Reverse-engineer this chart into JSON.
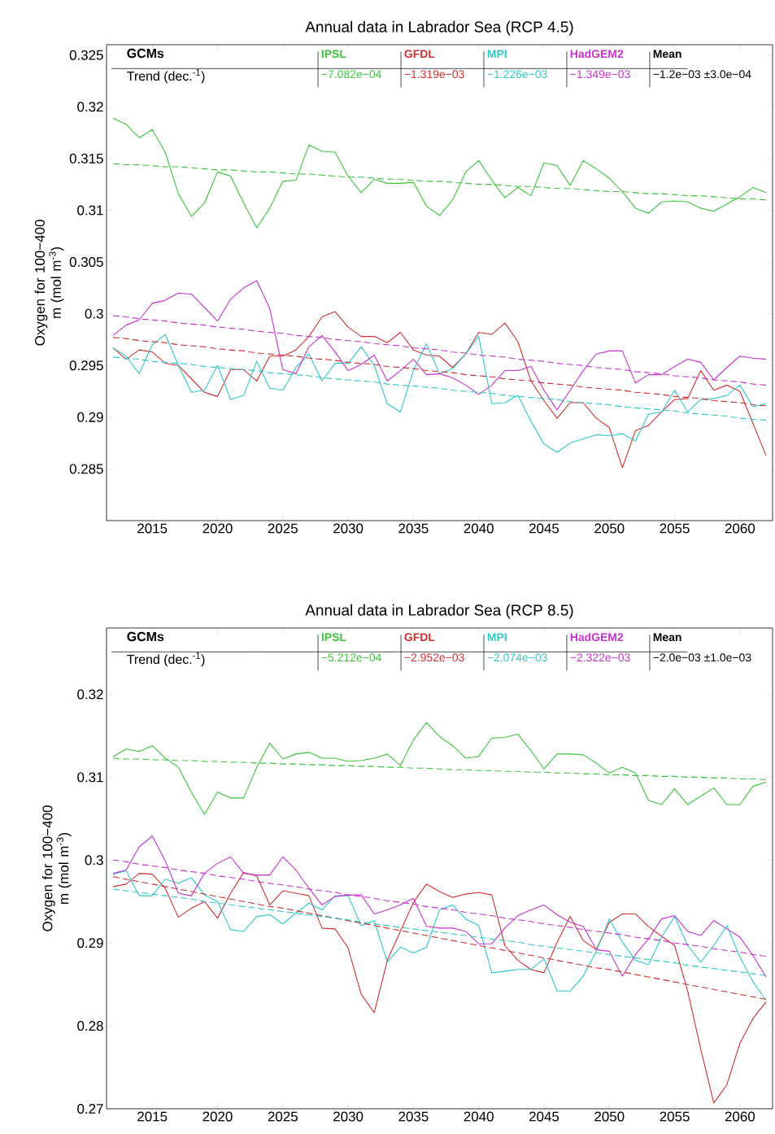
{
  "chart_data": [
    {
      "type": "line",
      "title": "Annual data in Labrador Sea (RCP 4.5)",
      "ylabel": "Oxygen for 100−400 m (mol m$^{-3}$)",
      "x": [
        2012,
        2013,
        2014,
        2015,
        2016,
        2017,
        2018,
        2019,
        2020,
        2021,
        2022,
        2023,
        2024,
        2025,
        2026,
        2027,
        2028,
        2029,
        2030,
        2031,
        2032,
        2033,
        2034,
        2035,
        2036,
        2037,
        2038,
        2039,
        2040,
        2041,
        2042,
        2043,
        2044,
        2045,
        2046,
        2047,
        2048,
        2049,
        2050,
        2051,
        2052,
        2053,
        2054,
        2055,
        2056,
        2057,
        2058,
        2059,
        2060,
        2061,
        2062
      ],
      "xlim": [
        2011.5,
        2062.5
      ],
      "xticks": [
        2015,
        2020,
        2025,
        2030,
        2035,
        2040,
        2045,
        2050,
        2055,
        2060
      ],
      "ylim": [
        0.28,
        0.326
      ],
      "yticks": [
        0.285,
        0.29,
        0.295,
        0.3,
        0.305,
        0.31,
        0.315,
        0.32,
        0.325
      ],
      "legend": "top",
      "annotations": [
        "GCMs",
        "Trend (dec.$^{-1}$)",
        "−7.082e−04",
        "−1.319e−03",
        "−1.226e−03",
        "−1.349e−03",
        "Mean",
        "−1.2e−03 ±3.0e−04"
      ],
      "series": [
        {
          "name": "IPSL",
          "color": "#3cc43c",
          "values": [
            0.3189,
            0.3183,
            0.317,
            0.3178,
            0.3156,
            0.3116,
            0.3094,
            0.3107,
            0.3137,
            0.3133,
            0.3107,
            0.3083,
            0.3102,
            0.3128,
            0.3129,
            0.3163,
            0.3157,
            0.3156,
            0.3133,
            0.3117,
            0.313,
            0.3126,
            0.3126,
            0.3127,
            0.3104,
            0.3095,
            0.311,
            0.3137,
            0.3148,
            0.3129,
            0.3112,
            0.3122,
            0.3114,
            0.3146,
            0.3143,
            0.3124,
            0.3148,
            0.314,
            0.3131,
            0.3118,
            0.3102,
            0.3097,
            0.3108,
            0.3109,
            0.3108,
            0.3102,
            0.3099,
            0.3106,
            0.3113,
            0.3122,
            0.3117
          ]
        },
        {
          "name": "GFDL",
          "color": "#d03030",
          "values": [
            0.2967,
            0.2956,
            0.2965,
            0.2963,
            0.2952,
            0.295,
            0.2937,
            0.2924,
            0.292,
            0.2946,
            0.2946,
            0.2935,
            0.2959,
            0.2959,
            0.2965,
            0.2978,
            0.2997,
            0.3002,
            0.2987,
            0.2978,
            0.2978,
            0.2972,
            0.2982,
            0.2965,
            0.296,
            0.2959,
            0.2948,
            0.2961,
            0.2982,
            0.298,
            0.2991,
            0.2973,
            0.2935,
            0.2916,
            0.2899,
            0.2914,
            0.2914,
            0.2899,
            0.289,
            0.2851,
            0.2887,
            0.2892,
            0.2905,
            0.2917,
            0.2918,
            0.2945,
            0.2926,
            0.2931,
            0.2925,
            0.2894,
            0.2863
          ]
        },
        {
          "name": "MPI",
          "color": "#2ec8c8",
          "values": [
            0.2967,
            0.2959,
            0.2942,
            0.297,
            0.298,
            0.295,
            0.2924,
            0.2926,
            0.295,
            0.2917,
            0.2921,
            0.2954,
            0.2928,
            0.2926,
            0.2948,
            0.2961,
            0.2935,
            0.2952,
            0.2952,
            0.2968,
            0.295,
            0.2913,
            0.2905,
            0.2945,
            0.2971,
            0.2942,
            0.2947,
            0.2961,
            0.2978,
            0.2913,
            0.2914,
            0.2921,
            0.2896,
            0.2874,
            0.2866,
            0.2875,
            0.2879,
            0.2883,
            0.2882,
            0.2884,
            0.2877,
            0.2903,
            0.2905,
            0.2926,
            0.2905,
            0.2917,
            0.2918,
            0.2921,
            0.2931,
            0.291,
            0.2913
          ]
        },
        {
          "name": "HadGEM2",
          "color": "#c832d2",
          "values": [
            0.2979,
            0.2989,
            0.2994,
            0.301,
            0.3013,
            0.302,
            0.3019,
            0.3006,
            0.2993,
            0.3014,
            0.3025,
            0.3032,
            0.3005,
            0.2946,
            0.2942,
            0.2968,
            0.2979,
            0.2963,
            0.2945,
            0.2951,
            0.296,
            0.2935,
            0.2945,
            0.2956,
            0.2941,
            0.2942,
            0.2938,
            0.2931,
            0.2922,
            0.2931,
            0.2945,
            0.2945,
            0.2949,
            0.2926,
            0.2907,
            0.2926,
            0.2945,
            0.2961,
            0.2964,
            0.2964,
            0.2933,
            0.2941,
            0.2941,
            0.2949,
            0.2956,
            0.2953,
            0.2936,
            0.2948,
            0.2959,
            0.2957,
            0.2956
          ]
        },
        {
          "type": "line",
          "line_style": "dashed",
          "color": "#3cc43c",
          "values": [
            0.3145,
            0.3144,
            0.3144,
            0.3143,
            0.3142,
            0.3142,
            0.3141,
            0.314,
            0.3139,
            0.3139,
            0.3138,
            0.3137,
            0.3137,
            0.3136,
            0.3135,
            0.3135,
            0.3134,
            0.3133,
            0.3132,
            0.3132,
            0.3131,
            0.313,
            0.313,
            0.3129,
            0.3128,
            0.3128,
            0.3127,
            0.3126,
            0.3125,
            0.3125,
            0.3124,
            0.3123,
            0.3123,
            0.3122,
            0.3121,
            0.3121,
            0.312,
            0.3119,
            0.3118,
            0.3118,
            0.3117,
            0.3116,
            0.3116,
            0.3115,
            0.3114,
            0.3114,
            0.3113,
            0.3112,
            0.3111,
            0.3111,
            0.311
          ]
        },
        {
          "type": "line",
          "line_style": "dashed",
          "color": "#d03030",
          "values": [
            0.2977,
            0.2976,
            0.2974,
            0.2973,
            0.2972,
            0.297,
            0.2969,
            0.2968,
            0.2966,
            0.2965,
            0.2964,
            0.2962,
            0.2961,
            0.296,
            0.2959,
            0.2957,
            0.2956,
            0.2955,
            0.2953,
            0.2952,
            0.2951,
            0.2949,
            0.2948,
            0.2947,
            0.2945,
            0.2944,
            0.2943,
            0.2941,
            0.294,
            0.2939,
            0.2937,
            0.2936,
            0.2935,
            0.2933,
            0.2932,
            0.2931,
            0.2929,
            0.2928,
            0.2927,
            0.2926,
            0.2924,
            0.2923,
            0.2922,
            0.292,
            0.2919,
            0.2918,
            0.2916,
            0.2915,
            0.2914,
            0.2912,
            0.2911
          ]
        },
        {
          "type": "line",
          "line_style": "dashed",
          "color": "#2ec8c8",
          "values": [
            0.2958,
            0.2957,
            0.2956,
            0.2954,
            0.2953,
            0.2952,
            0.2951,
            0.2949,
            0.2948,
            0.2947,
            0.2946,
            0.2945,
            0.2943,
            0.2942,
            0.2941,
            0.294,
            0.2938,
            0.2937,
            0.2936,
            0.2935,
            0.2934,
            0.2932,
            0.2931,
            0.293,
            0.2929,
            0.2928,
            0.2926,
            0.2925,
            0.2924,
            0.2923,
            0.2921,
            0.292,
            0.2919,
            0.2918,
            0.2917,
            0.2915,
            0.2914,
            0.2913,
            0.2912,
            0.291,
            0.2909,
            0.2908,
            0.2907,
            0.2906,
            0.2904,
            0.2903,
            0.2902,
            0.2901,
            0.2899,
            0.2898,
            0.2897
          ]
        },
        {
          "type": "line",
          "line_style": "dashed",
          "color": "#c832d2",
          "values": [
            0.2998,
            0.2997,
            0.2995,
            0.2994,
            0.2993,
            0.2991,
            0.299,
            0.2989,
            0.2987,
            0.2986,
            0.2985,
            0.2983,
            0.2982,
            0.2981,
            0.2979,
            0.2978,
            0.2977,
            0.2975,
            0.2974,
            0.2973,
            0.2971,
            0.297,
            0.2969,
            0.2967,
            0.2966,
            0.2965,
            0.2963,
            0.2962,
            0.296,
            0.2959,
            0.2958,
            0.2956,
            0.2955,
            0.2954,
            0.2952,
            0.2951,
            0.295,
            0.2948,
            0.2947,
            0.2946,
            0.2944,
            0.2943,
            0.2942,
            0.294,
            0.2939,
            0.2938,
            0.2936,
            0.2935,
            0.2934,
            0.2932,
            0.2931
          ]
        }
      ]
    },
    {
      "type": "line",
      "title": "Annual data in Labrador Sea (RCP 8.5)",
      "ylabel": "Oxygen for 100−400 m (mol m$^{-3}$)",
      "x": [
        2012,
        2013,
        2014,
        2015,
        2016,
        2017,
        2018,
        2019,
        2020,
        2021,
        2022,
        2023,
        2024,
        2025,
        2026,
        2027,
        2028,
        2029,
        2030,
        2031,
        2032,
        2033,
        2034,
        2035,
        2036,
        2037,
        2038,
        2039,
        2040,
        2041,
        2042,
        2043,
        2044,
        2045,
        2046,
        2047,
        2048,
        2049,
        2050,
        2051,
        2052,
        2053,
        2054,
        2055,
        2056,
        2057,
        2058,
        2059,
        2060,
        2061,
        2062
      ],
      "xlim": [
        2011.5,
        2062.5
      ],
      "xticks": [
        2015,
        2020,
        2025,
        2030,
        2035,
        2040,
        2045,
        2050,
        2055,
        2060
      ],
      "ylim": [
        0.27,
        0.328
      ],
      "yticks": [
        0.27,
        0.28,
        0.29,
        0.3,
        0.31,
        0.32
      ],
      "legend": "top",
      "annotations": [
        "GCMs",
        "Trend (dec.$^{-1}$)",
        "−5.212e−04",
        "−2.952e−03",
        "−2.074e−03",
        "−2.322e−03",
        "Mean",
        "−2.0e−03 ±1.0e−03"
      ],
      "series": [
        {
          "name": "IPSL",
          "color": "#3cc43c",
          "values": [
            0.3125,
            0.3134,
            0.3131,
            0.3138,
            0.3123,
            0.3112,
            0.3082,
            0.3055,
            0.3082,
            0.3075,
            0.3075,
            0.3112,
            0.3141,
            0.3122,
            0.3128,
            0.313,
            0.3123,
            0.3123,
            0.3119,
            0.312,
            0.3123,
            0.3128,
            0.3114,
            0.3145,
            0.3166,
            0.3149,
            0.3138,
            0.3123,
            0.3125,
            0.3147,
            0.3148,
            0.3152,
            0.3132,
            0.311,
            0.3128,
            0.3128,
            0.3127,
            0.3117,
            0.3105,
            0.3112,
            0.3105,
            0.3072,
            0.3067,
            0.3086,
            0.3067,
            0.3077,
            0.3087,
            0.3067,
            0.3067,
            0.3089,
            0.3094
          ]
        },
        {
          "name": "GFDL",
          "color": "#d03030",
          "values": [
            0.2968,
            0.2971,
            0.2984,
            0.2983,
            0.2966,
            0.2931,
            0.2942,
            0.295,
            0.293,
            0.296,
            0.2985,
            0.2981,
            0.2946,
            0.2963,
            0.296,
            0.2957,
            0.2918,
            0.2917,
            0.2894,
            0.2838,
            0.2816,
            0.2879,
            0.2914,
            0.2949,
            0.2971,
            0.2962,
            0.2955,
            0.2959,
            0.2961,
            0.2958,
            0.2897,
            0.2879,
            0.2868,
            0.2864,
            0.2901,
            0.2932,
            0.2903,
            0.2892,
            0.2925,
            0.2935,
            0.2935,
            0.292,
            0.2908,
            0.2897,
            0.2842,
            0.2772,
            0.2707,
            0.2729,
            0.2779,
            0.2809,
            0.2829
          ]
        },
        {
          "name": "MPI",
          "color": "#2ec8c8",
          "values": [
            0.2983,
            0.2987,
            0.2957,
            0.2957,
            0.2977,
            0.2972,
            0.2979,
            0.2958,
            0.295,
            0.2916,
            0.2914,
            0.2932,
            0.2934,
            0.2923,
            0.2936,
            0.2948,
            0.294,
            0.2957,
            0.2957,
            0.2921,
            0.2927,
            0.2877,
            0.2895,
            0.2888,
            0.2895,
            0.294,
            0.2946,
            0.2929,
            0.2921,
            0.2864,
            0.2866,
            0.2868,
            0.2868,
            0.2881,
            0.2842,
            0.2842,
            0.286,
            0.289,
            0.2929,
            0.2901,
            0.2879,
            0.2874,
            0.2907,
            0.2932,
            0.2897,
            0.2877,
            0.2897,
            0.2921,
            0.2883,
            0.2853,
            0.2831
          ]
        },
        {
          "name": "HadGEM2",
          "color": "#c832d2",
          "values": [
            0.2984,
            0.2988,
            0.3016,
            0.3029,
            0.2999,
            0.296,
            0.2957,
            0.2984,
            0.2996,
            0.3004,
            0.2984,
            0.2982,
            0.2982,
            0.3004,
            0.2988,
            0.2966,
            0.2946,
            0.2956,
            0.2958,
            0.2958,
            0.2935,
            0.294,
            0.2946,
            0.2954,
            0.292,
            0.2918,
            0.2918,
            0.2914,
            0.2899,
            0.2899,
            0.2918,
            0.2933,
            0.294,
            0.2946,
            0.2934,
            0.2925,
            0.292,
            0.2892,
            0.289,
            0.286,
            0.2886,
            0.2905,
            0.2929,
            0.2933,
            0.2914,
            0.2909,
            0.2927,
            0.2917,
            0.2907,
            0.2885,
            0.2859
          ]
        },
        {
          "type": "line",
          "line_style": "dashed",
          "color": "#3cc43c",
          "values": [
            0.3123,
            0.3122,
            0.3122,
            0.3121,
            0.3121,
            0.312,
            0.312,
            0.3119,
            0.3119,
            0.3118,
            0.3118,
            0.3117,
            0.3117,
            0.3116,
            0.3116,
            0.3115,
            0.3115,
            0.3114,
            0.3114,
            0.3113,
            0.3113,
            0.3112,
            0.3112,
            0.3111,
            0.3111,
            0.311,
            0.3109,
            0.3109,
            0.3108,
            0.3108,
            0.3107,
            0.3107,
            0.3106,
            0.3106,
            0.3105,
            0.3105,
            0.3104,
            0.3104,
            0.3103,
            0.3103,
            0.3102,
            0.3102,
            0.3101,
            0.3101,
            0.31,
            0.31,
            0.3099,
            0.3099,
            0.3098,
            0.3098,
            0.3097
          ]
        },
        {
          "type": "line",
          "line_style": "dashed",
          "color": "#d03030",
          "values": [
            0.298,
            0.2977,
            0.2974,
            0.2971,
            0.2968,
            0.2965,
            0.2962,
            0.2959,
            0.2956,
            0.2953,
            0.295,
            0.2947,
            0.2944,
            0.2942,
            0.2939,
            0.2936,
            0.2933,
            0.293,
            0.2927,
            0.2924,
            0.2921,
            0.2918,
            0.2915,
            0.2912,
            0.2909,
            0.2906,
            0.2903,
            0.29,
            0.2897,
            0.2894,
            0.2891,
            0.2888,
            0.2885,
            0.2882,
            0.2879,
            0.2876,
            0.2873,
            0.287,
            0.2868,
            0.2865,
            0.2862,
            0.2859,
            0.2856,
            0.2853,
            0.285,
            0.2847,
            0.2844,
            0.2841,
            0.2838,
            0.2835,
            0.2832
          ]
        },
        {
          "type": "line",
          "line_style": "dashed",
          "color": "#2ec8c8",
          "values": [
            0.2965,
            0.2963,
            0.2961,
            0.2959,
            0.2957,
            0.2955,
            0.2953,
            0.295,
            0.2948,
            0.2946,
            0.2944,
            0.2942,
            0.294,
            0.2938,
            0.2936,
            0.2934,
            0.2932,
            0.293,
            0.2928,
            0.2925,
            0.2923,
            0.2921,
            0.2919,
            0.2917,
            0.2915,
            0.2913,
            0.2911,
            0.2909,
            0.2907,
            0.2905,
            0.2903,
            0.2901,
            0.2898,
            0.2896,
            0.2894,
            0.2892,
            0.289,
            0.2888,
            0.2886,
            0.2884,
            0.2882,
            0.288,
            0.2878,
            0.2876,
            0.2873,
            0.2871,
            0.2869,
            0.2867,
            0.2865,
            0.2863,
            0.2861
          ]
        },
        {
          "type": "line",
          "line_style": "dashed",
          "color": "#c832d2",
          "values": [
            0.3,
            0.2998,
            0.2995,
            0.2993,
            0.2991,
            0.2988,
            0.2986,
            0.2984,
            0.2981,
            0.2979,
            0.2977,
            0.2974,
            0.2972,
            0.297,
            0.2968,
            0.2965,
            0.2963,
            0.2961,
            0.2958,
            0.2956,
            0.2954,
            0.2951,
            0.2949,
            0.2947,
            0.2944,
            0.2942,
            0.294,
            0.2937,
            0.2935,
            0.2933,
            0.293,
            0.2928,
            0.2926,
            0.2923,
            0.2921,
            0.2919,
            0.2916,
            0.2914,
            0.2912,
            0.291,
            0.2907,
            0.2905,
            0.2903,
            0.29,
            0.2898,
            0.2896,
            0.2893,
            0.2891,
            0.2889,
            0.2886,
            0.2884
          ]
        }
      ]
    }
  ]
}
